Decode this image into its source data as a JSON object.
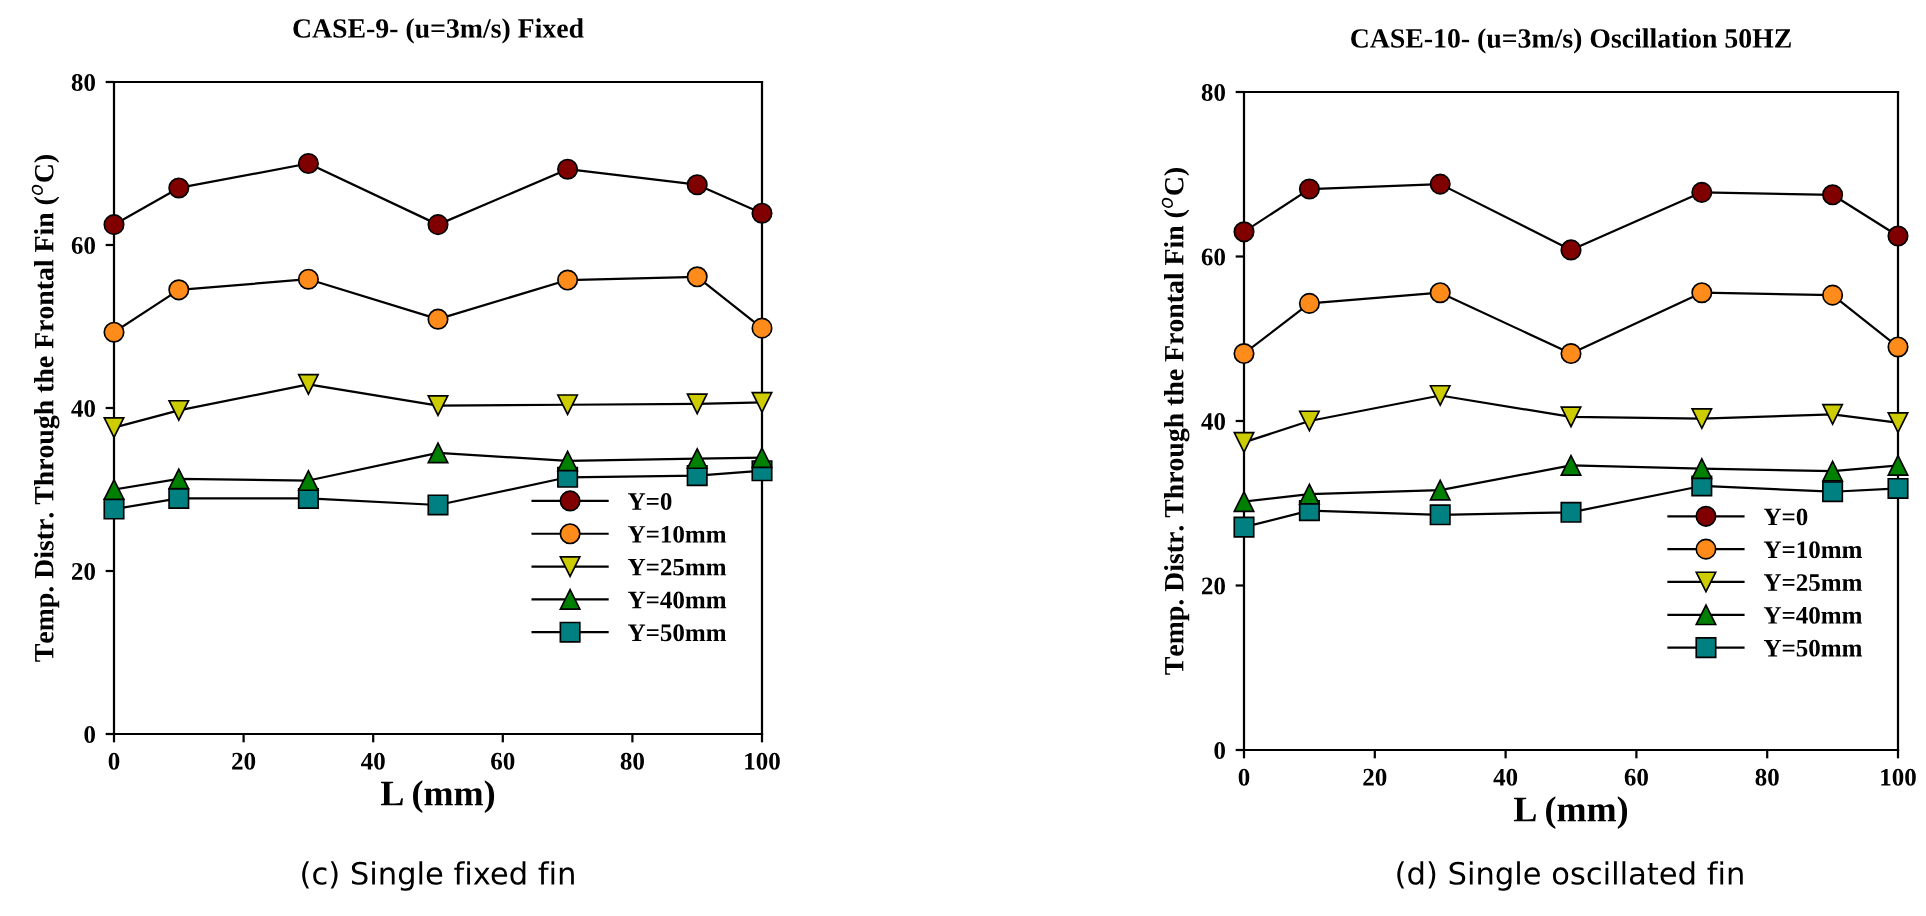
{
  "chart_data": [
    {
      "type": "line",
      "title": "CASE-9- (u=3m/s) Fixed",
      "xlabel": "L (mm)",
      "ylabel": "Temp. Distr. Through the Frontal Fin ($^{o}$C)",
      "annotations": [
        "(c) Single fixed fin"
      ],
      "x": [
        0,
        10,
        30,
        50,
        70,
        90,
        100
      ],
      "xlim": [
        0,
        100
      ],
      "xticks": [
        0,
        20,
        40,
        60,
        80,
        100
      ],
      "ylim": [
        0,
        80
      ],
      "yticks": [
        0,
        20,
        40,
        60,
        80
      ],
      "grid": false,
      "legend": "bottom right",
      "line_style": "solid",
      "series": [
        {
          "name": "Y=0",
          "color": "#800000",
          "marker": "circle",
          "values": [
            62.5,
            67,
            70,
            62.5,
            69.3,
            67.4,
            63.9
          ]
        },
        {
          "name": "Y=10mm",
          "color": "#ff8c1a",
          "marker": "circle",
          "values": [
            49.3,
            54.5,
            55.8,
            50.9,
            55.7,
            56.1,
            49.8
          ]
        },
        {
          "name": "Y=25mm",
          "color": "#cccc00",
          "marker": "triangle_down",
          "values": [
            37.6,
            39.7,
            42.9,
            40.3,
            40.4,
            40.5,
            40.7
          ]
        },
        {
          "name": "Y=40mm",
          "color": "#008000",
          "marker": "triangle",
          "values": [
            30,
            31.3,
            31.1,
            34.5,
            33.5,
            33.8,
            33.9
          ]
        },
        {
          "name": "Y=50mm",
          "color": "#008080",
          "marker": "square",
          "values": [
            27.6,
            28.9,
            28.9,
            28.1,
            31.5,
            31.7,
            32.3
          ]
        }
      ]
    },
    {
      "type": "line",
      "title": "CASE-10- (u=3m/s) Oscillation 50HZ",
      "xlabel": "L (mm)",
      "ylabel": "Temp. Distr. Through the Frontal Fin ($^{o}$C)",
      "annotations": [
        "(d) Single oscillated fin"
      ],
      "x": [
        0,
        10,
        30,
        50,
        70,
        90,
        100
      ],
      "xlim": [
        0,
        100
      ],
      "xticks": [
        0,
        20,
        40,
        60,
        80,
        100
      ],
      "ylim": [
        0,
        80
      ],
      "yticks": [
        0,
        20,
        40,
        60,
        80
      ],
      "grid": false,
      "legend": "bottom right",
      "line_style": "solid",
      "series": [
        {
          "name": "Y=0",
          "color": "#800000",
          "marker": "circle",
          "values": [
            63,
            68.2,
            68.8,
            60.8,
            67.8,
            67.5,
            62.5
          ]
        },
        {
          "name": "Y=10mm",
          "color": "#ff8c1a",
          "marker": "circle",
          "values": [
            48.2,
            54.3,
            55.6,
            48.2,
            55.6,
            55.3,
            49
          ]
        },
        {
          "name": "Y=25mm",
          "color": "#cccc00",
          "marker": "triangle_down",
          "values": [
            37.4,
            40,
            43.1,
            40.5,
            40.3,
            40.8,
            39.8
          ]
        },
        {
          "name": "Y=40mm",
          "color": "#008000",
          "marker": "triangle",
          "values": [
            30.2,
            31.1,
            31.6,
            34.6,
            34.2,
            33.9,
            34.6
          ]
        },
        {
          "name": "Y=50mm",
          "color": "#008080",
          "marker": "square",
          "values": [
            27.1,
            29.1,
            28.6,
            28.9,
            32.1,
            31.4,
            31.8
          ]
        }
      ]
    }
  ]
}
